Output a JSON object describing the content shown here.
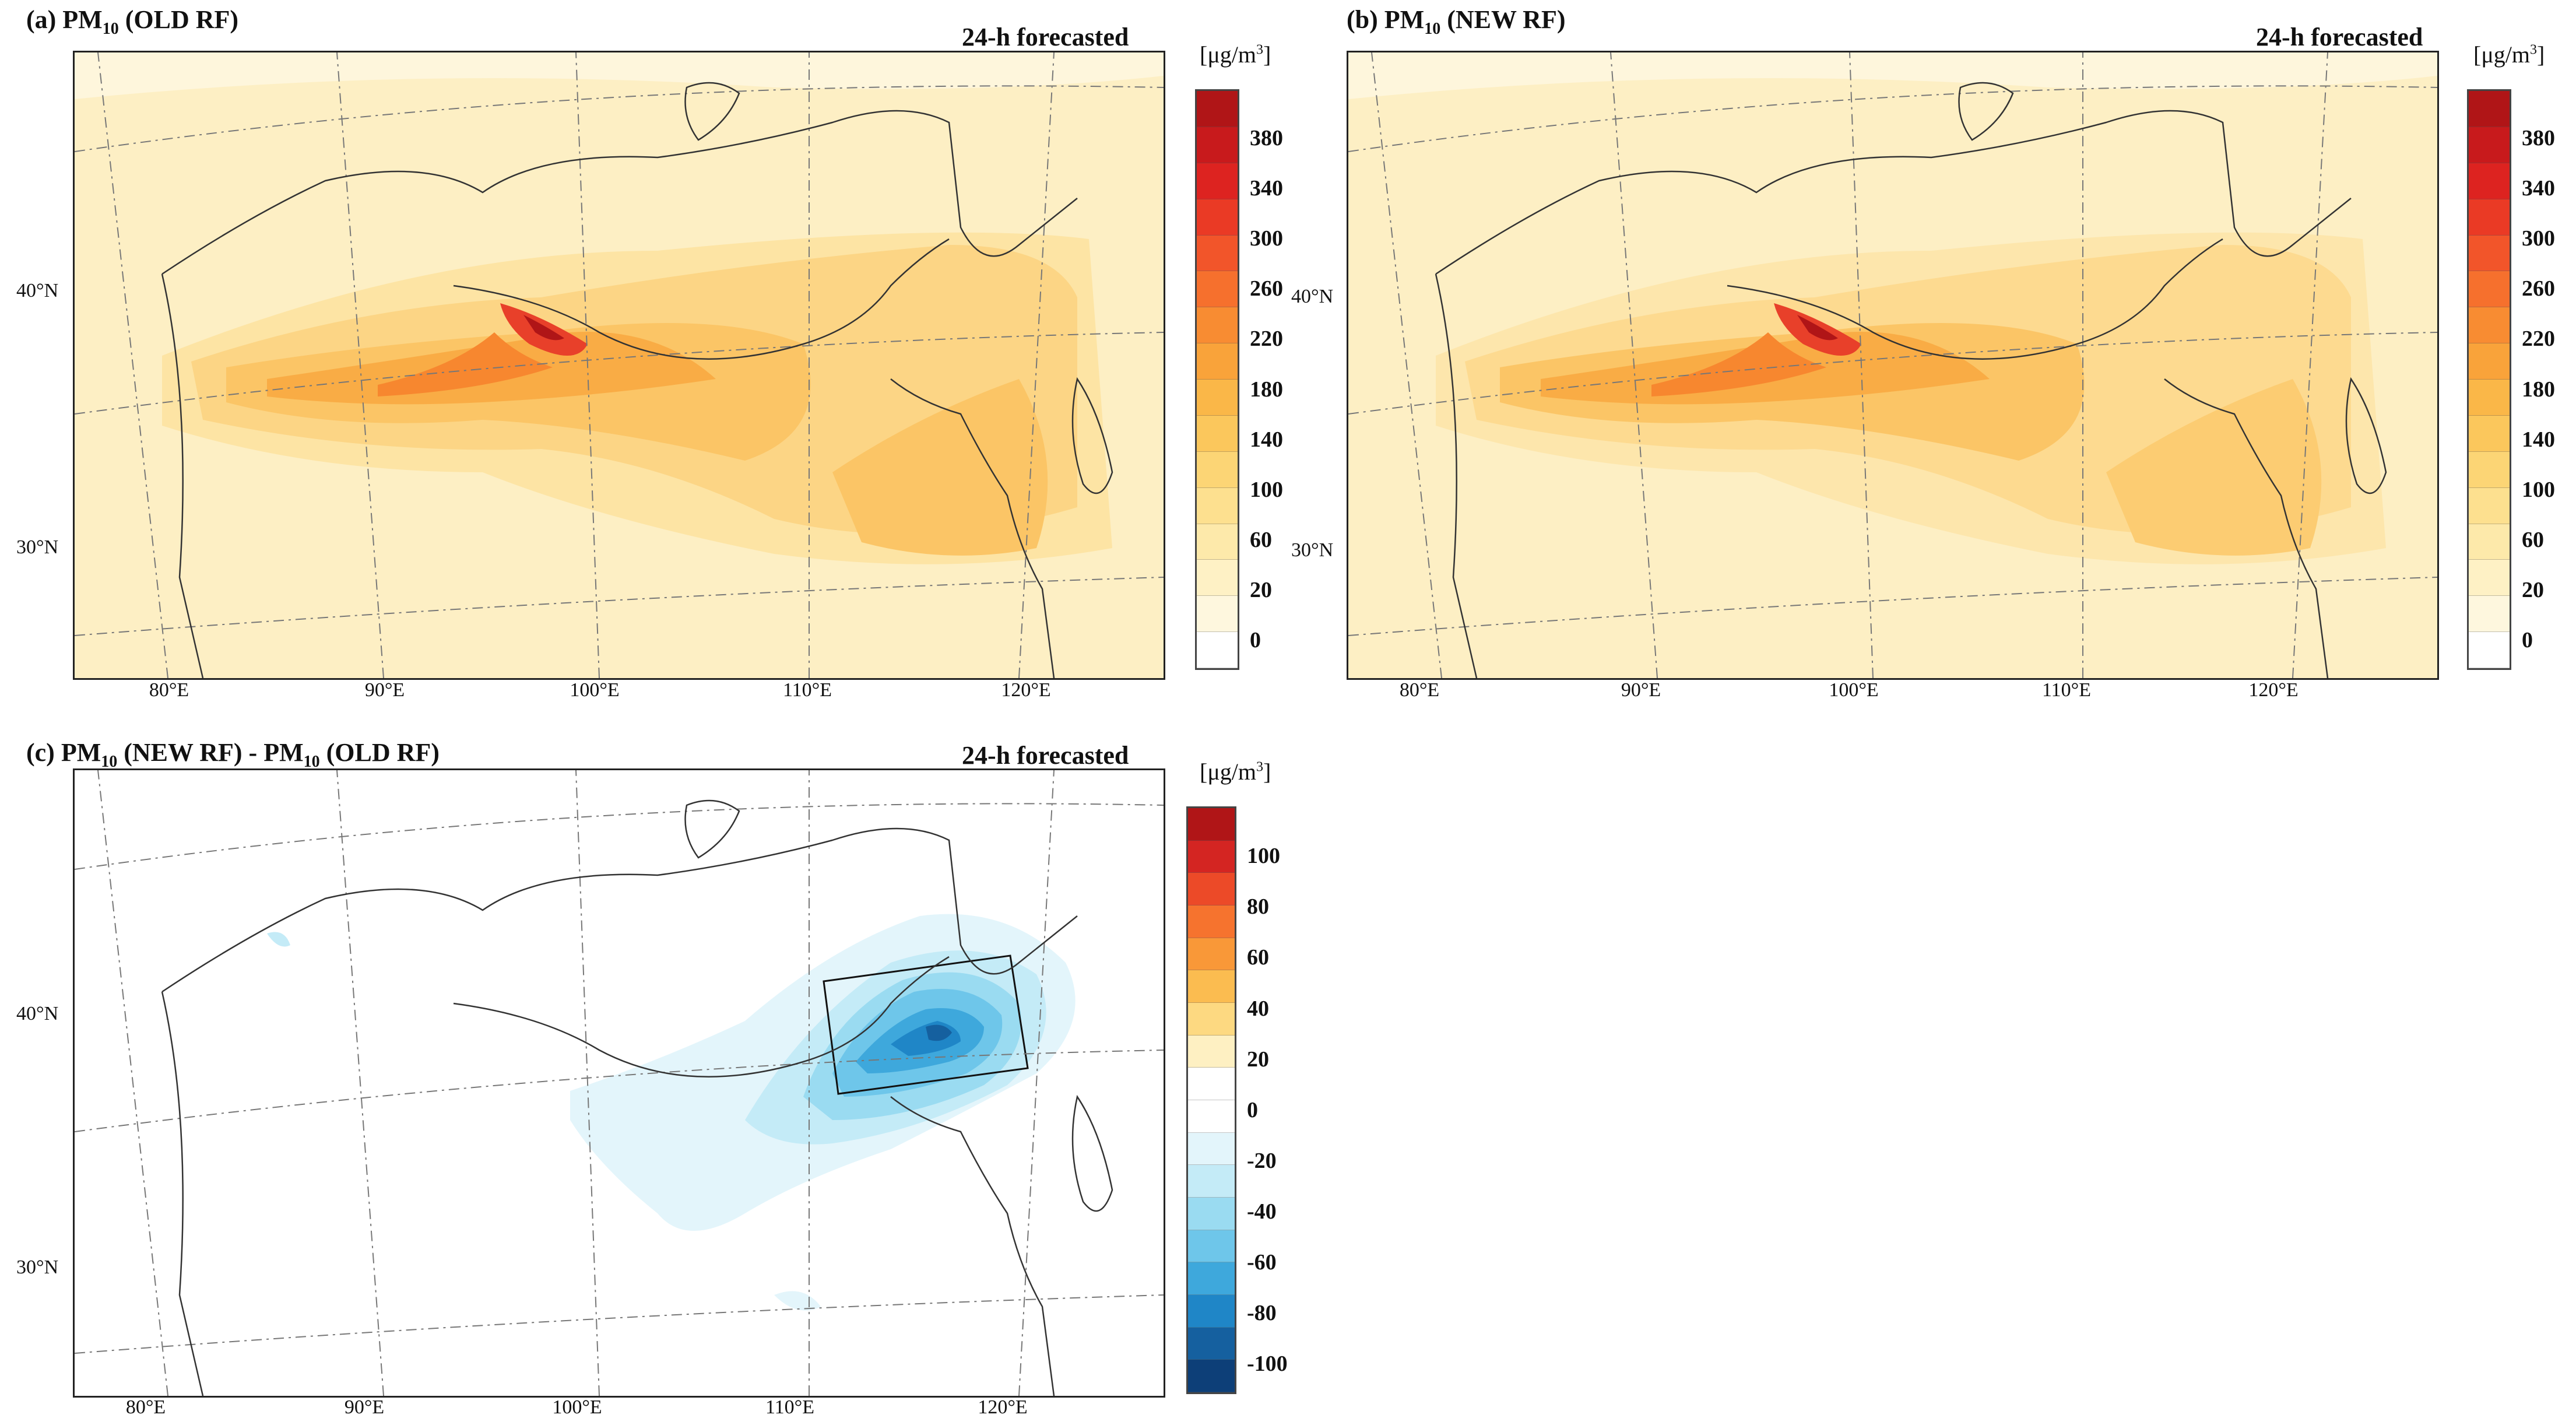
{
  "panels": {
    "a": {
      "title_prefix": "(a) PM",
      "title_sub": "10",
      "title_suffix": " (OLD RF)",
      "forecast": "24-h forecasted",
      "lat_labels": [
        "40°N",
        "30°N"
      ],
      "lon_labels": [
        "80°E",
        "90°E",
        "100°E",
        "110°E",
        "120°E"
      ]
    },
    "b": {
      "title_prefix": "(b) PM",
      "title_sub": "10",
      "title_suffix": " (NEW RF)",
      "forecast": "24-h forecasted",
      "lat_labels": [
        "40°N",
        "30°N"
      ],
      "lon_labels": [
        "80°E",
        "90°E",
        "100°E",
        "110°E",
        "120°E"
      ]
    },
    "c": {
      "title_prefix": "(c) PM",
      "title_sub": "10",
      "title_mid": " (NEW RF) - PM",
      "title_sub2": "10",
      "title_suffix": " (OLD RF)",
      "forecast": "24-h forecasted",
      "lat_labels": [
        "40°N",
        "30°N"
      ],
      "lon_labels": [
        "80°E",
        "90°E",
        "100°E",
        "110°E",
        "120°E"
      ]
    }
  },
  "colorbars": {
    "pm": {
      "unit_prefix": "[μg/m",
      "unit_sup": "3",
      "unit_suffix": "]",
      "ticks": [
        "380",
        "340",
        "300",
        "260",
        "220",
        "180",
        "140",
        "100",
        "60",
        "20",
        "0"
      ],
      "colors": [
        "#b01517",
        "#c81a1c",
        "#dd2320",
        "#ea3a25",
        "#f2552a",
        "#f6702d",
        "#f88c32",
        "#f9a33a",
        "#fab748",
        "#fbc75c",
        "#fcd575",
        "#fde08f",
        "#fde9aa",
        "#fef1c5",
        "#fef7de",
        "#ffffff"
      ]
    },
    "diff": {
      "unit_prefix": "[μg/m",
      "unit_sup": "3",
      "unit_suffix": "]",
      "ticks": [
        "100",
        "80",
        "60",
        "40",
        "20",
        "0",
        "-20",
        "-40",
        "-60",
        "-80",
        "-100"
      ],
      "colors": [
        "#b01517",
        "#d42522",
        "#ec4a28",
        "#f6732e",
        "#f99838",
        "#fbbc50",
        "#fdd981",
        "#fef0c2",
        "#ffffff",
        "#ffffff",
        "#e3f5fb",
        "#c4ebf7",
        "#9adbf1",
        "#6ec6ea",
        "#3ea8dc",
        "#1f86c7",
        "#15609f",
        "#0d3f78"
      ]
    }
  }
}
